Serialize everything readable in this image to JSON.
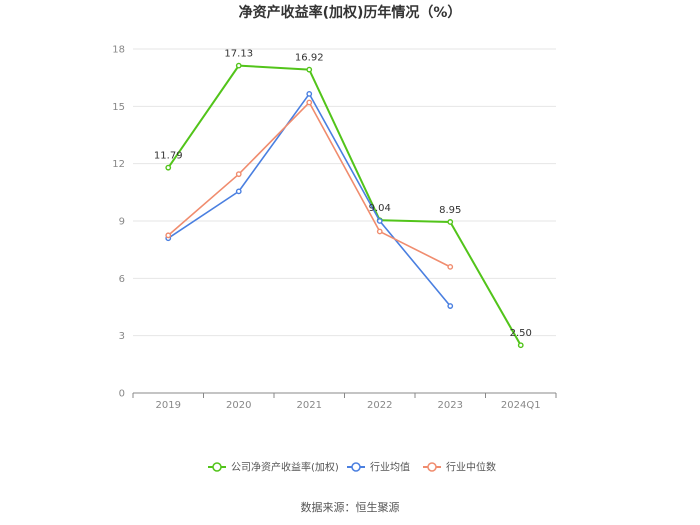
{
  "chart_data": {
    "type": "line",
    "title": "净资产收益率(加权)历年情况（%）",
    "categories": [
      "2019",
      "2020",
      "2021",
      "2022",
      "2023",
      "2024Q1"
    ],
    "ylim": [
      0,
      18
    ],
    "yticks": [
      0,
      3,
      6,
      9,
      12,
      15,
      18
    ],
    "grid": true,
    "legend_position": "bottom",
    "series": [
      {
        "name": "公司净资产收益率(加权)",
        "color": "#52c41a",
        "values": [
          11.79,
          17.13,
          16.92,
          9.04,
          8.95,
          2.5
        ],
        "labels": [
          "11.79",
          "17.13",
          "16.92",
          "9.04",
          "8.95",
          "2.50"
        ]
      },
      {
        "name": "行业均值",
        "color": "#4a7fe0",
        "values": [
          8.1,
          10.55,
          15.65,
          9.0,
          4.55,
          null
        ]
      },
      {
        "name": "行业中位数",
        "color": "#f08c6e",
        "values": [
          8.25,
          11.45,
          15.2,
          8.45,
          6.6,
          null
        ]
      }
    ]
  },
  "source": "数据来源：恒生聚源"
}
